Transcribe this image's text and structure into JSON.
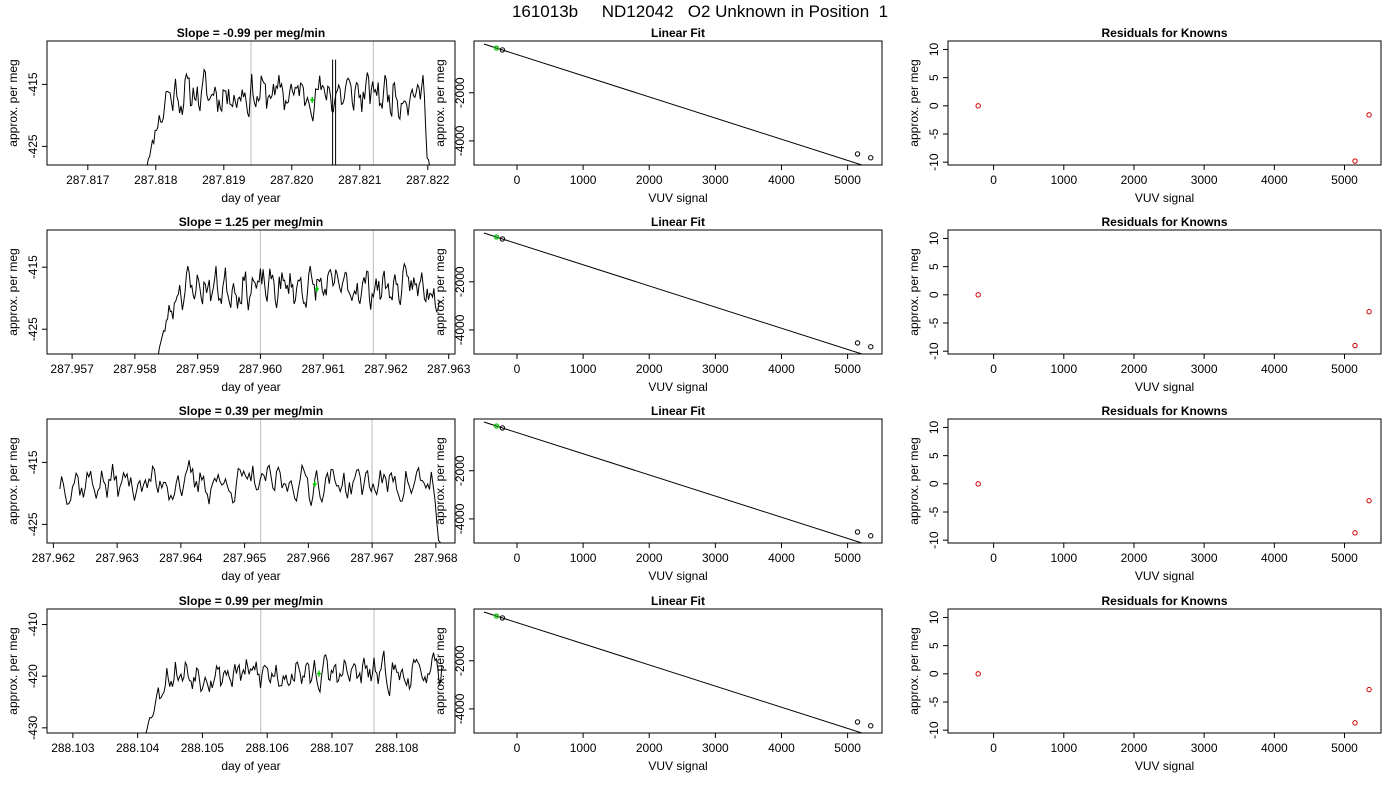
{
  "page_title": "161013b     ND12042   O2 Unknown in Position  1",
  "colors": {
    "trace": "#000000",
    "marker": "#00cc00",
    "residual": "#cc0000",
    "vline": "#c8c8c8"
  },
  "chart_data": [
    {
      "type": "line",
      "title": "Slope =  -0.99  per meg/min",
      "xlabel": "day of year",
      "ylabel": "approx. per meg",
      "xlim": [
        287.8164,
        287.8224
      ],
      "ylim": [
        -428,
        -408
      ],
      "xticks": [
        "287.817",
        "287.818",
        "287.819",
        "287.820",
        "287.821",
        "287.822"
      ],
      "xtick_values": [
        287.817,
        287.818,
        287.819,
        287.82,
        287.821,
        287.822
      ],
      "yticks": [
        "-415",
        "-425"
      ],
      "ytick_values": [
        -415,
        -425
      ],
      "vlines": [
        287.8194,
        287.8212
      ],
      "marker": {
        "x": 287.8203,
        "y": -417.5
      },
      "x_start": 287.81785,
      "x_end": 287.82205,
      "base": -416.5,
      "amp": 2.4,
      "seed": 11,
      "ramp": 0.25,
      "drop_end": true,
      "spike": {
        "x": 287.8206,
        "lo": -428,
        "hi": -411
      }
    },
    {
      "type": "line",
      "title": "Linear Fit",
      "xlabel": "VUV signal",
      "ylabel": "approx. per meg",
      "xlim": [
        -650,
        5520
      ],
      "ylim": [
        -5000,
        150
      ],
      "xticks": [
        "0",
        "1000",
        "2000",
        "3000",
        "4000",
        "5000"
      ],
      "xtick_values": [
        0,
        1000,
        2000,
        3000,
        4000,
        5000
      ],
      "yticks": [
        "-2000",
        "-4000"
      ],
      "ytick_values": [
        -2000,
        -4000
      ],
      "fit": {
        "slope": -0.879,
        "intercept": -415,
        "x_from": -500,
        "x_to": 5350
      },
      "points": [
        [
          -220,
          -220
        ],
        [
          5150,
          -4540
        ],
        [
          5350,
          -4700
        ]
      ],
      "marker": {
        "x": -310,
        "y": -140
      }
    },
    {
      "type": "scatter",
      "title": "Residuals for Knowns",
      "xlabel": "VUV signal",
      "ylabel": "approx. per meg",
      "xlim": [
        -650,
        5520
      ],
      "ylim": [
        -10.5,
        11.5
      ],
      "xticks": [
        "0",
        "1000",
        "2000",
        "3000",
        "4000",
        "5000"
      ],
      "xtick_values": [
        0,
        1000,
        2000,
        3000,
        4000,
        5000
      ],
      "yticks": [
        "-10",
        "-5",
        "0",
        "5",
        "10"
      ],
      "ytick_values": [
        -10,
        -5,
        0,
        5,
        10
      ],
      "points": [
        [
          -220,
          0
        ],
        [
          5150,
          -9.8
        ],
        [
          5350,
          -1.6
        ]
      ]
    },
    {
      "type": "line",
      "title": "Slope =  1.25  per meg/min",
      "xlabel": "day of year",
      "ylabel": "approx. per meg",
      "xlim": [
        287.9566,
        287.9631
      ],
      "ylim": [
        -429,
        -409
      ],
      "xticks": [
        "287.957",
        "287.958",
        "287.959",
        "287.960",
        "287.961",
        "287.962",
        "287.963"
      ],
      "xtick_values": [
        287.957,
        287.958,
        287.959,
        287.96,
        287.961,
        287.962,
        287.963
      ],
      "yticks": [
        "-415",
        "-425"
      ],
      "ytick_values": [
        -415,
        -425
      ],
      "vlines": [
        287.96,
        287.9618
      ],
      "marker": {
        "x": 287.9609,
        "y": -418.5
      },
      "x_start": 287.95835,
      "x_end": 287.96285,
      "base": -418.2,
      "amp": 2.2,
      "seed": 23,
      "ramp": 0.25,
      "drop_end": false
    },
    {
      "type": "line",
      "title": "Linear Fit",
      "xlabel": "VUV signal",
      "ylabel": "approx. per meg",
      "xlim": [
        -650,
        5520
      ],
      "ylim": [
        -5000,
        150
      ],
      "xticks": [
        "0",
        "1000",
        "2000",
        "3000",
        "4000",
        "5000"
      ],
      "xtick_values": [
        0,
        1000,
        2000,
        3000,
        4000,
        5000
      ],
      "yticks": [
        "-2000",
        "-4000"
      ],
      "ytick_values": [
        -2000,
        -4000
      ],
      "fit": {
        "slope": -0.879,
        "intercept": -415,
        "x_from": -500,
        "x_to": 5350
      },
      "points": [
        [
          -220,
          -220
        ],
        [
          5150,
          -4540
        ],
        [
          5350,
          -4700
        ]
      ],
      "marker": {
        "x": -310,
        "y": -140
      }
    },
    {
      "type": "scatter",
      "title": "Residuals for Knowns",
      "xlabel": "VUV signal",
      "ylabel": "approx. per meg",
      "xlim": [
        -650,
        5520
      ],
      "ylim": [
        -10.5,
        11.5
      ],
      "xticks": [
        "0",
        "1000",
        "2000",
        "3000",
        "4000",
        "5000"
      ],
      "xtick_values": [
        0,
        1000,
        2000,
        3000,
        4000,
        5000
      ],
      "yticks": [
        "-10",
        "-5",
        "0",
        "5",
        "10"
      ],
      "ytick_values": [
        -10,
        -5,
        0,
        5,
        10
      ],
      "points": [
        [
          -220,
          0
        ],
        [
          5150,
          -9.0
        ],
        [
          5350,
          -3.0
        ]
      ]
    },
    {
      "type": "line",
      "title": "Slope =  0.39  per meg/min",
      "xlabel": "day of year",
      "ylabel": "approx. per meg",
      "xlim": [
        287.9619,
        287.9683
      ],
      "ylim": [
        -428,
        -408
      ],
      "xticks": [
        "287.962",
        "287.963",
        "287.964",
        "287.965",
        "287.966",
        "287.967",
        "287.968"
      ],
      "xtick_values": [
        287.962,
        287.963,
        287.964,
        287.965,
        287.966,
        287.967,
        287.968
      ],
      "yticks": [
        "-415",
        "-425"
      ],
      "ytick_values": [
        -415,
        -425
      ],
      "vlines": [
        287.96525,
        287.967
      ],
      "marker": {
        "x": 287.9661,
        "y": -418.5
      },
      "x_start": 287.9621,
      "x_end": 287.9681,
      "base": -418.3,
      "amp": 2.0,
      "seed": 37,
      "ramp": 0,
      "drop_end": true
    },
    {
      "type": "line",
      "title": "Linear Fit",
      "xlabel": "VUV signal",
      "ylabel": "approx. per meg",
      "xlim": [
        -650,
        5520
      ],
      "ylim": [
        -5000,
        150
      ],
      "xticks": [
        "0",
        "1000",
        "2000",
        "3000",
        "4000",
        "5000"
      ],
      "xtick_values": [
        0,
        1000,
        2000,
        3000,
        4000,
        5000
      ],
      "yticks": [
        "-2000",
        "-4000"
      ],
      "ytick_values": [
        -2000,
        -4000
      ],
      "fit": {
        "slope": -0.879,
        "intercept": -415,
        "x_from": -500,
        "x_to": 5350
      },
      "points": [
        [
          -220,
          -220
        ],
        [
          5150,
          -4540
        ],
        [
          5350,
          -4700
        ]
      ],
      "marker": {
        "x": -310,
        "y": -140
      }
    },
    {
      "type": "scatter",
      "title": "Residuals for Knowns",
      "xlabel": "VUV signal",
      "ylabel": "approx. per meg",
      "xlim": [
        -650,
        5520
      ],
      "ylim": [
        -10.5,
        11.5
      ],
      "xticks": [
        "0",
        "1000",
        "2000",
        "3000",
        "4000",
        "5000"
      ],
      "xtick_values": [
        0,
        1000,
        2000,
        3000,
        4000,
        5000
      ],
      "yticks": [
        "-10",
        "-5",
        "0",
        "5",
        "10"
      ],
      "ytick_values": [
        -10,
        -5,
        0,
        5,
        10
      ],
      "points": [
        [
          -220,
          0
        ],
        [
          5150,
          -8.7
        ],
        [
          5350,
          -3.0
        ]
      ]
    },
    {
      "type": "line",
      "title": "Slope =  0.99  per meg/min",
      "xlabel": "day of year",
      "ylabel": "approx. per meg",
      "xlim": [
        288.1026,
        288.1089
      ],
      "ylim": [
        -431,
        -407
      ],
      "xticks": [
        "288.103",
        "288.104",
        "288.105",
        "288.106",
        "288.107",
        "288.108"
      ],
      "xtick_values": [
        288.103,
        288.104,
        288.105,
        288.106,
        288.107,
        288.108
      ],
      "yticks": [
        "-410",
        "-420",
        "-430"
      ],
      "ytick_values": [
        -410,
        -420,
        -430
      ],
      "vlines": [
        288.1059,
        288.10765
      ],
      "marker": {
        "x": 288.1068,
        "y": -419.5
      },
      "x_start": 288.1041,
      "x_end": 288.1087,
      "base": -419.5,
      "amp": 2.2,
      "seed": 53,
      "ramp": 0.18,
      "drop_end": false
    },
    {
      "type": "line",
      "title": "Linear Fit",
      "xlabel": "VUV signal",
      "ylabel": "approx. per meg",
      "xlim": [
        -650,
        5520
      ],
      "ylim": [
        -5000,
        150
      ],
      "xticks": [
        "0",
        "1000",
        "2000",
        "3000",
        "4000",
        "5000"
      ],
      "xtick_values": [
        0,
        1000,
        2000,
        3000,
        4000,
        5000
      ],
      "yticks": [
        "-2000",
        "-4000"
      ],
      "ytick_values": [
        -2000,
        -4000
      ],
      "fit": {
        "slope": -0.879,
        "intercept": -415,
        "x_from": -500,
        "x_to": 5350
      },
      "points": [
        [
          -220,
          -220
        ],
        [
          5150,
          -4540
        ],
        [
          5350,
          -4700
        ]
      ],
      "marker": {
        "x": -310,
        "y": -140
      }
    },
    {
      "type": "scatter",
      "title": "Residuals for Knowns",
      "xlabel": "VUV signal",
      "ylabel": "approx. per meg",
      "xlim": [
        -650,
        5520
      ],
      "ylim": [
        -10.5,
        11.5
      ],
      "xticks": [
        "0",
        "1000",
        "2000",
        "3000",
        "4000",
        "5000"
      ],
      "xtick_values": [
        0,
        1000,
        2000,
        3000,
        4000,
        5000
      ],
      "yticks": [
        "-10",
        "-5",
        "0",
        "5",
        "10"
      ],
      "ytick_values": [
        -10,
        -5,
        0,
        5,
        10
      ],
      "points": [
        [
          -220,
          0
        ],
        [
          5150,
          -8.7
        ],
        [
          5350,
          -2.8
        ]
      ]
    }
  ]
}
